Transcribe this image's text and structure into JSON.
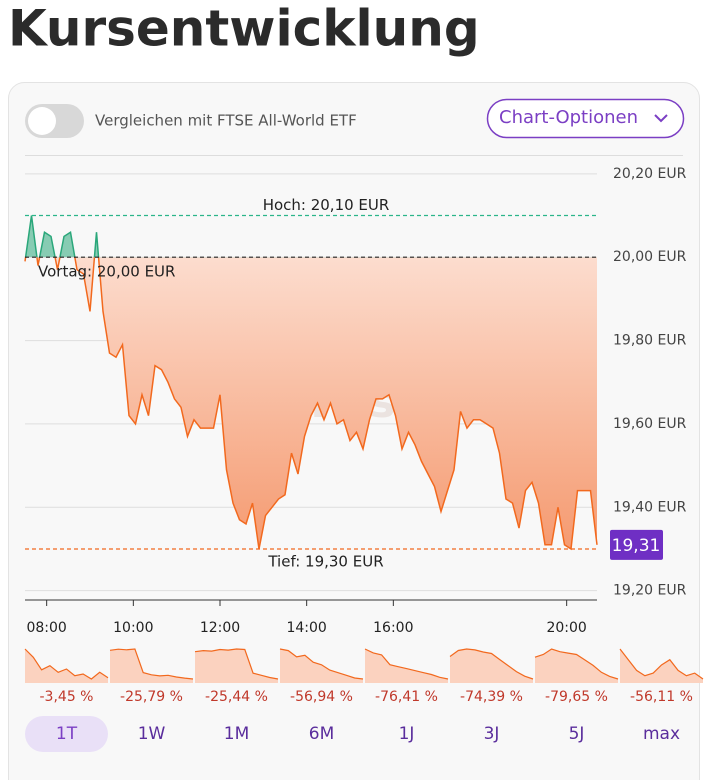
{
  "header": {
    "title": "Kursentwicklung"
  },
  "compare_toggle": {
    "label": "Vergleichen mit FTSE All-World ETF"
  },
  "options_button": {
    "label": "Chart-Optionen"
  },
  "chart_data": {
    "type": "area",
    "watermark": "onvista",
    "x": [
      7.5,
      7.65,
      7.8,
      7.95,
      8.1,
      8.25,
      8.4,
      8.55,
      8.7,
      8.85,
      9,
      9.15,
      9.3,
      9.45,
      9.6,
      9.75,
      9.9,
      10.05,
      10.2,
      10.35,
      10.5,
      10.65,
      10.8,
      10.95,
      11.1,
      11.25,
      11.4,
      11.55,
      11.7,
      11.85,
      12,
      12.15,
      12.3,
      12.45,
      12.6,
      12.75,
      12.9,
      13.05,
      13.2,
      13.35,
      13.5,
      13.65,
      13.8,
      13.95,
      14.1,
      14.25,
      14.4,
      14.55,
      14.7,
      14.85,
      15,
      15.15,
      15.3,
      15.45,
      15.6,
      15.75,
      15.9,
      16.05,
      16.2,
      16.35,
      16.5,
      16.65,
      16.8,
      16.95,
      17.1,
      17.25,
      17.4,
      17.55,
      17.7,
      17.85,
      18,
      18.15,
      18.3,
      18.45,
      18.6,
      18.75,
      18.9,
      19.05,
      19.2,
      19.35,
      19.5,
      19.65,
      19.8,
      19.95,
      20.1,
      20.25,
      20.4,
      20.55,
      20.7
    ],
    "values": [
      19.99,
      20.1,
      19.98,
      20.06,
      20.05,
      19.97,
      20.05,
      20.06,
      19.97,
      19.96,
      19.87,
      20.06,
      19.87,
      19.77,
      19.76,
      19.79,
      19.62,
      19.6,
      19.67,
      19.62,
      19.74,
      19.73,
      19.7,
      19.66,
      19.64,
      19.57,
      19.61,
      19.59,
      19.59,
      19.59,
      19.67,
      19.49,
      19.41,
      19.37,
      19.36,
      19.41,
      19.3,
      19.38,
      19.4,
      19.42,
      19.43,
      19.53,
      19.48,
      19.57,
      19.62,
      19.65,
      19.61,
      19.65,
      19.6,
      19.61,
      19.56,
      19.58,
      19.54,
      19.61,
      19.66,
      19.66,
      19.67,
      19.62,
      19.54,
      19.58,
      19.55,
      19.51,
      19.48,
      19.45,
      19.39,
      19.44,
      19.49,
      19.63,
      19.59,
      19.61,
      19.61,
      19.6,
      19.59,
      19.53,
      19.42,
      19.41,
      19.35,
      19.44,
      19.46,
      19.41,
      19.31,
      19.31,
      19.4,
      19.31,
      19.3,
      19.44,
      19.44,
      19.44,
      19.31
    ],
    "color": "#f2691e",
    "color_above": "#2aa77a",
    "xlim": [
      7.5,
      20.7
    ],
    "xticks": [
      {
        "value": 8,
        "label": "08:00"
      },
      {
        "value": 10,
        "label": "10:00"
      },
      {
        "value": 12,
        "label": "12:00"
      },
      {
        "value": 14,
        "label": "14:00"
      },
      {
        "value": 16,
        "label": "16:00"
      },
      {
        "value": 20,
        "label": "20:00"
      }
    ],
    "ylim": [
      19.18,
      20.25
    ],
    "yticks": [
      {
        "value": 20.2,
        "label": "20,20 EUR"
      },
      {
        "value": 20,
        "label": "20,00 EUR"
      },
      {
        "value": 19.8,
        "label": "19,80 EUR"
      },
      {
        "value": 19.6,
        "label": "19,60 EUR"
      },
      {
        "value": 19.4,
        "label": "19,40 EUR"
      },
      {
        "value": 19.2,
        "label": "19,20 EUR"
      }
    ],
    "grid": true,
    "baseline": {
      "value": 20,
      "label": "Vortag: 20,00 EUR",
      "color": "#222222"
    },
    "annotations": [
      {
        "value": 20.1,
        "label": "Hoch: 20,10 EUR",
        "color": "#2bb58a"
      },
      {
        "value": 19.3,
        "label": "Tief: 19,30 EUR",
        "color": "#f2691e"
      }
    ],
    "last_price": {
      "value": 19.31,
      "label": "19,31",
      "color": "#6f2fc4"
    }
  },
  "periods": [
    {
      "label": "1T",
      "selected": true,
      "change": -3.45,
      "change_label": "-3,45 %",
      "values": [
        0,
        -1,
        -2.5,
        -2,
        -2.8,
        -2.4,
        -3.2,
        -3,
        -3.6,
        -2.8,
        -3.45
      ]
    },
    {
      "label": "1W",
      "change": -25.79,
      "change_label": "-25,79 %",
      "values": [
        0,
        1,
        0.5,
        1.2,
        -20,
        -22,
        -23,
        -22.5,
        -24,
        -25,
        -25.79
      ]
    },
    {
      "label": "1M",
      "change": -25.44,
      "change_label": "-25,44 %",
      "values": [
        0,
        1,
        0.5,
        2,
        1.5,
        2.5,
        2,
        -20,
        -22,
        -24,
        -25.44
      ]
    },
    {
      "label": "6M",
      "change": -56.94,
      "change_label": "-56,94 %",
      "values": [
        0,
        -3,
        -15,
        -12,
        -25,
        -30,
        -40,
        -45,
        -50,
        -55,
        -56.94
      ]
    },
    {
      "label": "1J",
      "change": -76.41,
      "change_label": "-76,41 %",
      "values": [
        0,
        -10,
        -15,
        -40,
        -45,
        -50,
        -55,
        -60,
        -65,
        -72,
        -76.41
      ]
    },
    {
      "label": "3J",
      "change": -74.39,
      "change_label": "-74,39 %",
      "values": [
        0,
        20,
        25,
        22,
        15,
        10,
        -10,
        -30,
        -50,
        -65,
        -74.39
      ]
    },
    {
      "label": "5J",
      "change": -79.65,
      "change_label": "-79,65 %",
      "values": [
        0,
        10,
        30,
        20,
        15,
        10,
        -10,
        -30,
        -55,
        -70,
        -79.65
      ]
    },
    {
      "label": "max",
      "change": -56.11,
      "change_label": "-56,11 %",
      "values": [
        0,
        -20,
        -40,
        -50,
        -45,
        -30,
        -20,
        -40,
        -50,
        -45,
        -56.11
      ]
    }
  ]
}
